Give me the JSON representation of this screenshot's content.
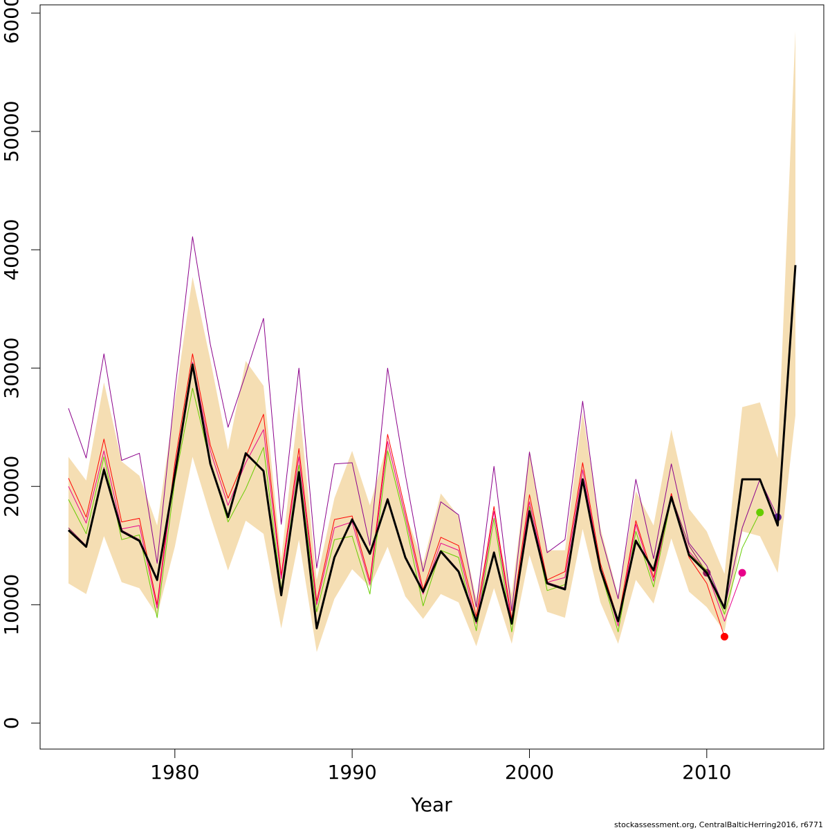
{
  "chart_data": {
    "type": "line",
    "x_label": "Year",
    "caption": "stockassessment.org, CentralBalticHerring2016, r6771",
    "x": [
      1974,
      1975,
      1976,
      1977,
      1978,
      1979,
      1980,
      1981,
      1982,
      1983,
      1984,
      1985,
      1986,
      1987,
      1988,
      1989,
      1990,
      1991,
      1992,
      1993,
      1994,
      1995,
      1996,
      1997,
      1998,
      1999,
      2000,
      2001,
      2002,
      2003,
      2004,
      2005,
      2006,
      2007,
      2008,
      2009,
      2010,
      2011,
      2012,
      2013,
      2014,
      2015
    ],
    "xlim": [
      1972.4,
      2016.6
    ],
    "xticks": [
      1980,
      1990,
      2000,
      2010
    ],
    "ylim": [
      -2200,
      60700
    ],
    "yticks": [
      0,
      10000,
      20000,
      30000,
      40000,
      50000,
      60000
    ],
    "band": {
      "color": "#f5deb3",
      "upper": [
        22500,
        20500,
        28800,
        22100,
        20900,
        16700,
        27200,
        37700,
        30700,
        23100,
        30600,
        28500,
        13900,
        27100,
        12100,
        19000,
        23000,
        18400,
        23700,
        17800,
        13500,
        19400,
        17500,
        10500,
        17100,
        10900,
        23100,
        14600,
        14600,
        26300,
        16500,
        10800,
        19600,
        16700,
        24800,
        18100,
        16200,
        12600,
        26700,
        27100,
        22400,
        58500
      ],
      "lower": [
        11800,
        10900,
        15800,
        11900,
        11400,
        9100,
        14900,
        22500,
        17500,
        12900,
        17100,
        16000,
        8000,
        15500,
        6000,
        10500,
        13000,
        11500,
        14900,
        10700,
        8800,
        10900,
        10200,
        6500,
        11400,
        6700,
        14200,
        9400,
        8900,
        16400,
        10200,
        6700,
        12100,
        10100,
        15600,
        11100,
        9800,
        7700,
        16200,
        15800,
        12700,
        26000
      ]
    },
    "series": [
      {
        "color": "#8b1a5a",
        "values": [
          16500,
          15000,
          21600,
          16300,
          15500,
          12000,
          21100,
          30200,
          22000,
          17500,
          22700,
          21400,
          10900,
          21300,
          8100,
          14100,
          17300,
          14300,
          19000,
          14100,
          11200,
          14600,
          12900,
          8700,
          14500,
          8500,
          18000,
          11900,
          11400,
          20600,
          13100,
          8700,
          15500,
          13000,
          19200,
          15000,
          12700,
          null,
          null,
          null,
          null,
          null
        ]
      },
      {
        "color": "#ff0000",
        "values": [
          20700,
          17400,
          24000,
          17000,
          17300,
          10000,
          22000,
          31200,
          23500,
          19000,
          22500,
          26100,
          12500,
          23200,
          10300,
          17200,
          17500,
          12000,
          24400,
          18000,
          11300,
          15700,
          15000,
          9000,
          18300,
          8800,
          19300,
          12100,
          12800,
          22000,
          13500,
          8700,
          17100,
          12300,
          19400,
          14000,
          11800,
          7300,
          null,
          null,
          null,
          null
        ]
      },
      {
        "color": "#e8008a",
        "values": [
          20000,
          16900,
          23000,
          16400,
          16700,
          9700,
          21500,
          30500,
          23000,
          18400,
          22000,
          24800,
          12200,
          22500,
          10000,
          16500,
          17000,
          11700,
          23800,
          17500,
          10900,
          15200,
          14600,
          8400,
          17900,
          8400,
          18700,
          11900,
          12300,
          21400,
          13200,
          8200,
          16800,
          12000,
          19200,
          14500,
          12800,
          8600,
          12700,
          null,
          null,
          null
        ]
      },
      {
        "color": "#66cc00",
        "values": [
          18900,
          16000,
          22500,
          15500,
          15900,
          8900,
          20500,
          28300,
          22000,
          17000,
          19800,
          23300,
          11300,
          21800,
          9400,
          15500,
          15800,
          10900,
          23000,
          17000,
          9900,
          14600,
          14000,
          7800,
          17300,
          7700,
          18300,
          11200,
          11700,
          20600,
          12900,
          7700,
          16200,
          11500,
          19000,
          14300,
          12900,
          9200,
          14800,
          17800,
          null,
          null
        ]
      },
      {
        "color": "#8b008b",
        "dot_color": "#551a8b",
        "values": [
          26600,
          22400,
          31200,
          22200,
          22800,
          13500,
          28000,
          41100,
          32000,
          25000,
          29500,
          34200,
          16800,
          30000,
          13100,
          21900,
          22000,
          15000,
          30000,
          21000,
          12800,
          18700,
          17600,
          9800,
          21700,
          9500,
          22900,
          14400,
          15500,
          27200,
          16000,
          10500,
          20600,
          13900,
          21900,
          15200,
          13300,
          9700,
          16500,
          20600,
          17400,
          null
        ]
      },
      {
        "color": "#000000",
        "width": 3,
        "values": [
          16300,
          14900,
          21400,
          16200,
          15400,
          12100,
          21000,
          30300,
          21900,
          17400,
          22800,
          21300,
          10800,
          21200,
          8000,
          14000,
          17200,
          14300,
          18900,
          14000,
          11100,
          14500,
          12800,
          8600,
          14400,
          8400,
          17900,
          11800,
          11300,
          20600,
          13000,
          8600,
          15400,
          12900,
          19100,
          14200,
          12700,
          9700,
          20600,
          20600,
          16700,
          38700
        ]
      }
    ]
  }
}
